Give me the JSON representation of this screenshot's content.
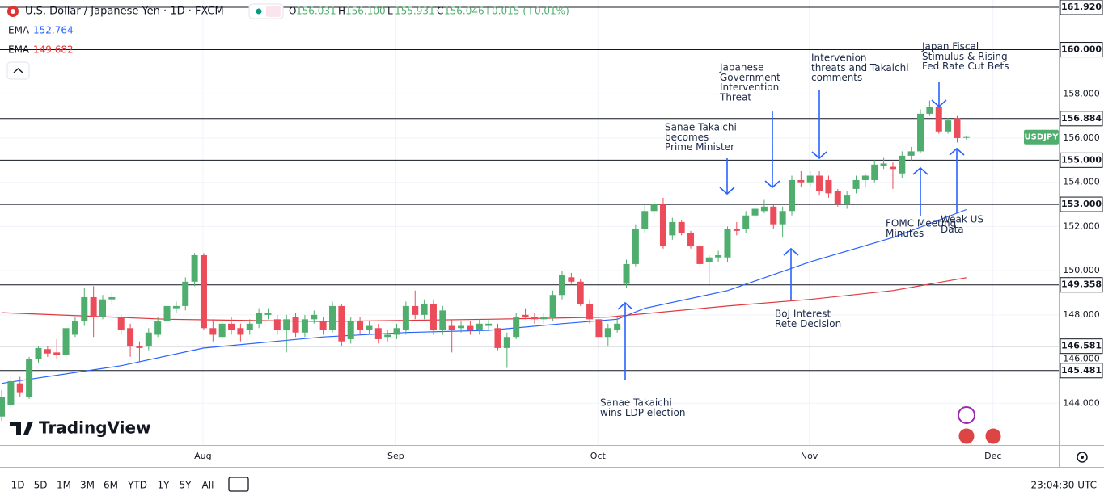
{
  "header": {
    "title": "U.S. Dollar / Japanese Yen · 1D · FXCM",
    "ohlc_labels": [
      "O",
      "H",
      "L",
      "C"
    ],
    "ohlc_values": [
      "156.031",
      "156.100",
      "155.931",
      "156.046"
    ],
    "change": "+0.015 (+0.01%)",
    "indicators": [
      {
        "name": "EMA",
        "value": "152.764"
      },
      {
        "name": "EMA",
        "value": "149.682"
      }
    ]
  },
  "logo": "TradingView",
  "toolbar": {
    "ranges": [
      "1D",
      "5D",
      "1M",
      "3M",
      "6M",
      "YTD",
      "1Y",
      "5Y",
      "All"
    ],
    "time": "23:04:30 UTC"
  },
  "chart_data": {
    "type": "candlestick",
    "symbol_tag": "USDJPY",
    "up_color": "#4fae6d",
    "down_color": "#ec4b5a",
    "open": [
      143.4,
      143.9,
      144.9,
      144.3,
      146.0,
      146.45,
      146.3,
      146.2,
      147.1,
      147.7,
      148.8,
      147.9,
      148.7,
      147.9,
      147.4,
      146.6,
      146.6,
      147.1,
      147.7,
      148.3,
      148.4,
      149.5,
      150.7,
      147.4,
      147.0,
      147.6,
      147.4,
      147.3,
      147.6,
      148.0,
      147.8,
      147.3,
      147.9,
      147.2,
      147.8,
      147.7,
      147.3,
      148.4,
      146.9,
      147.7,
      147.3,
      147.4,
      147.0,
      147.1,
      147.3,
      148.4,
      148.0,
      148.5,
      147.3,
      147.5,
      147.4,
      147.5,
      147.3,
      147.5,
      147.4,
      146.5,
      147.0,
      148.0,
      147.9,
      147.8,
      147.9,
      148.9,
      149.7,
      149.5,
      148.5,
      147.8,
      147.0,
      147.3,
      149.4,
      150.3,
      151.9,
      152.7,
      153.0,
      151.6,
      152.2,
      151.7,
      151.1,
      150.4,
      150.6,
      150.6,
      151.9,
      151.9,
      152.5,
      152.7,
      152.9,
      152.1,
      152.7,
      154.1,
      154.0,
      154.3,
      154.1,
      153.6,
      153.0,
      153.7,
      154.1,
      154.1,
      154.75,
      154.7,
      154.4,
      155.2,
      155.4,
      157.1,
      157.4,
      156.3,
      156.9,
      156.031
    ],
    "high": [
      144.6,
      145.3,
      145.2,
      146.1,
      146.6,
      146.6,
      146.9,
      147.6,
      147.9,
      149.2,
      149.3,
      148.9,
      149.0,
      148.0,
      147.6,
      146.8,
      147.4,
      147.9,
      148.6,
      148.6,
      149.7,
      150.8,
      150.8,
      147.8,
      147.8,
      147.9,
      147.6,
      147.8,
      148.3,
      148.3,
      148.0,
      148.0,
      148.1,
      148.0,
      148.2,
      147.9,
      148.6,
      148.5,
      147.9,
      147.9,
      147.7,
      147.6,
      147.3,
      147.6,
      148.6,
      149.1,
      148.7,
      148.7,
      148.4,
      147.8,
      147.7,
      147.7,
      147.8,
      147.8,
      147.6,
      147.2,
      148.1,
      148.3,
      148.1,
      148.1,
      149.1,
      150.0,
      149.9,
      149.6,
      148.7,
      148.0,
      147.6,
      147.9,
      150.5,
      152.1,
      153.0,
      153.3,
      153.3,
      152.4,
      152.3,
      151.8,
      151.2,
      150.7,
      150.9,
      152.0,
      152.2,
      152.7,
      153.0,
      153.2,
      153.0,
      152.9,
      154.3,
      154.5,
      154.5,
      154.5,
      154.3,
      153.7,
      153.6,
      154.3,
      154.4,
      155.0,
      155.1,
      154.9,
      155.4,
      155.6,
      157.3,
      157.7,
      157.6,
      156.9,
      157.0,
      156.1
    ],
    "low": [
      143.2,
      143.8,
      144.3,
      144.2,
      145.8,
      146.1,
      146.0,
      145.9,
      147.0,
      147.5,
      147.0,
      147.8,
      148.5,
      147.1,
      146.1,
      145.9,
      146.4,
      147.0,
      147.5,
      148.1,
      148.2,
      149.3,
      147.3,
      146.8,
      146.9,
      147.1,
      146.8,
      147.1,
      147.4,
      147.8,
      147.1,
      146.3,
      147.0,
      147.0,
      147.6,
      147.1,
      147.2,
      146.6,
      146.7,
      147.1,
      147.1,
      146.7,
      146.8,
      146.9,
      147.1,
      147.8,
      147.8,
      147.1,
      147.1,
      146.3,
      147.2,
      147.1,
      147.1,
      147.3,
      146.4,
      145.6,
      146.9,
      147.8,
      147.6,
      147.6,
      147.7,
      148.7,
      149.4,
      148.4,
      147.6,
      146.6,
      146.6,
      147.2,
      149.2,
      150.2,
      151.7,
      152.5,
      151.0,
      151.4,
      151.6,
      151.0,
      150.2,
      149.3,
      150.4,
      150.4,
      151.6,
      151.7,
      152.3,
      152.6,
      151.9,
      151.5,
      152.5,
      153.8,
      153.8,
      153.4,
      153.3,
      152.9,
      152.8,
      153.5,
      153.8,
      154.0,
      154.6,
      153.7,
      154.2,
      155.0,
      155.3,
      157.0,
      156.2,
      156.2,
      155.8,
      155.931
    ],
    "close": [
      144.3,
      145.0,
      144.5,
      146.0,
      146.5,
      146.25,
      146.2,
      147.4,
      147.7,
      148.8,
      147.9,
      148.7,
      148.8,
      147.3,
      146.6,
      146.5,
      147.2,
      147.7,
      148.4,
      148.4,
      149.5,
      150.7,
      147.4,
      147.1,
      147.6,
      147.3,
      147.1,
      147.6,
      148.1,
      148.1,
      147.3,
      147.8,
      147.2,
      147.8,
      148.0,
      147.3,
      148.4,
      146.8,
      147.7,
      147.3,
      147.5,
      146.9,
      147.1,
      147.4,
      148.4,
      148.0,
      148.5,
      147.3,
      148.2,
      147.3,
      147.5,
      147.3,
      147.6,
      147.6,
      146.5,
      147.0,
      147.9,
      147.9,
      147.8,
      147.9,
      148.9,
      149.8,
      149.5,
      148.5,
      147.8,
      147.0,
      147.4,
      147.6,
      150.3,
      151.9,
      152.7,
      153.0,
      151.1,
      152.2,
      151.7,
      151.1,
      150.3,
      150.6,
      150.7,
      151.9,
      151.8,
      152.5,
      152.8,
      152.9,
      152.1,
      152.7,
      154.1,
      154.0,
      154.3,
      153.6,
      153.5,
      153.0,
      153.4,
      154.1,
      154.3,
      154.8,
      154.85,
      154.6,
      155.2,
      155.4,
      157.1,
      157.4,
      156.3,
      156.8,
      156.0,
      156.046
    ],
    "series": [
      {
        "color": "#2962ff",
        "x": [
          0,
          13,
          22,
          35,
          44,
          53,
          61,
          67,
          70,
          79,
          88,
          97,
          105
        ],
        "values": [
          144.9,
          145.7,
          146.5,
          147.0,
          147.2,
          147.3,
          147.6,
          147.8,
          148.3,
          149.1,
          150.4,
          151.5,
          152.764
        ]
      },
      {
        "color": "#e0383e",
        "x": [
          0,
          18,
          35,
          53,
          66,
          79,
          88,
          97,
          105
        ],
        "values": [
          148.1,
          147.8,
          147.7,
          147.8,
          147.9,
          148.4,
          148.7,
          149.1,
          149.682
        ]
      }
    ],
    "xlim": [
      -0.18,
      115.05
    ],
    "xticks": [
      {
        "value": 21.9,
        "label": "Aug"
      },
      {
        "value": 42.9,
        "label": "Sep"
      },
      {
        "value": 64.9,
        "label": "Oct"
      },
      {
        "value": 87.9,
        "label": "Nov"
      },
      {
        "value": 107.9,
        "label": "Dec"
      }
    ],
    "ylim": [
      142.11,
      162.25
    ],
    "yticks": [
      {
        "value": 144,
        "label": "144.000"
      },
      {
        "value": 146,
        "label": "146.000"
      },
      {
        "value": 148,
        "label": "148.000"
      },
      {
        "value": 150,
        "label": "150.000"
      },
      {
        "value": 152,
        "label": "152.000"
      },
      {
        "value": 154,
        "label": "154.000"
      },
      {
        "value": 156,
        "label": "156.000"
      },
      {
        "value": 158,
        "label": "158.000"
      }
    ],
    "grid": true,
    "levels": [
      {
        "value": 161.92,
        "label": "161.920"
      },
      {
        "value": 160,
        "label": "160.000"
      },
      {
        "value": 156.884,
        "label": "156.884"
      },
      {
        "value": 155,
        "label": "155.000"
      },
      {
        "value": 153,
        "label": "153.000"
      },
      {
        "value": 149.358,
        "label": "149.358"
      },
      {
        "value": 146.581,
        "label": "146.581"
      },
      {
        "value": 145.481,
        "label": "145.481"
      }
    ],
    "annotations": [
      [
        "Sanae Takaichi",
        "wins LDP election"
      ],
      [
        "Sanae Takaichi",
        "becomes",
        "Prime Minister"
      ],
      [
        "Japanese",
        "Government",
        "Intervention",
        "Threat"
      ],
      [
        "Intervenion",
        "threats and Takaichi",
        "comments"
      ],
      [
        "Japan Fiscal",
        "Stimulus & Rising",
        "Fed Rate Cut Bets"
      ],
      [
        "BoJ Interest",
        "Rete Decision"
      ],
      [
        "FOMC Meeting",
        "Minutes"
      ],
      [
        "Weak US",
        "Data"
      ]
    ]
  }
}
